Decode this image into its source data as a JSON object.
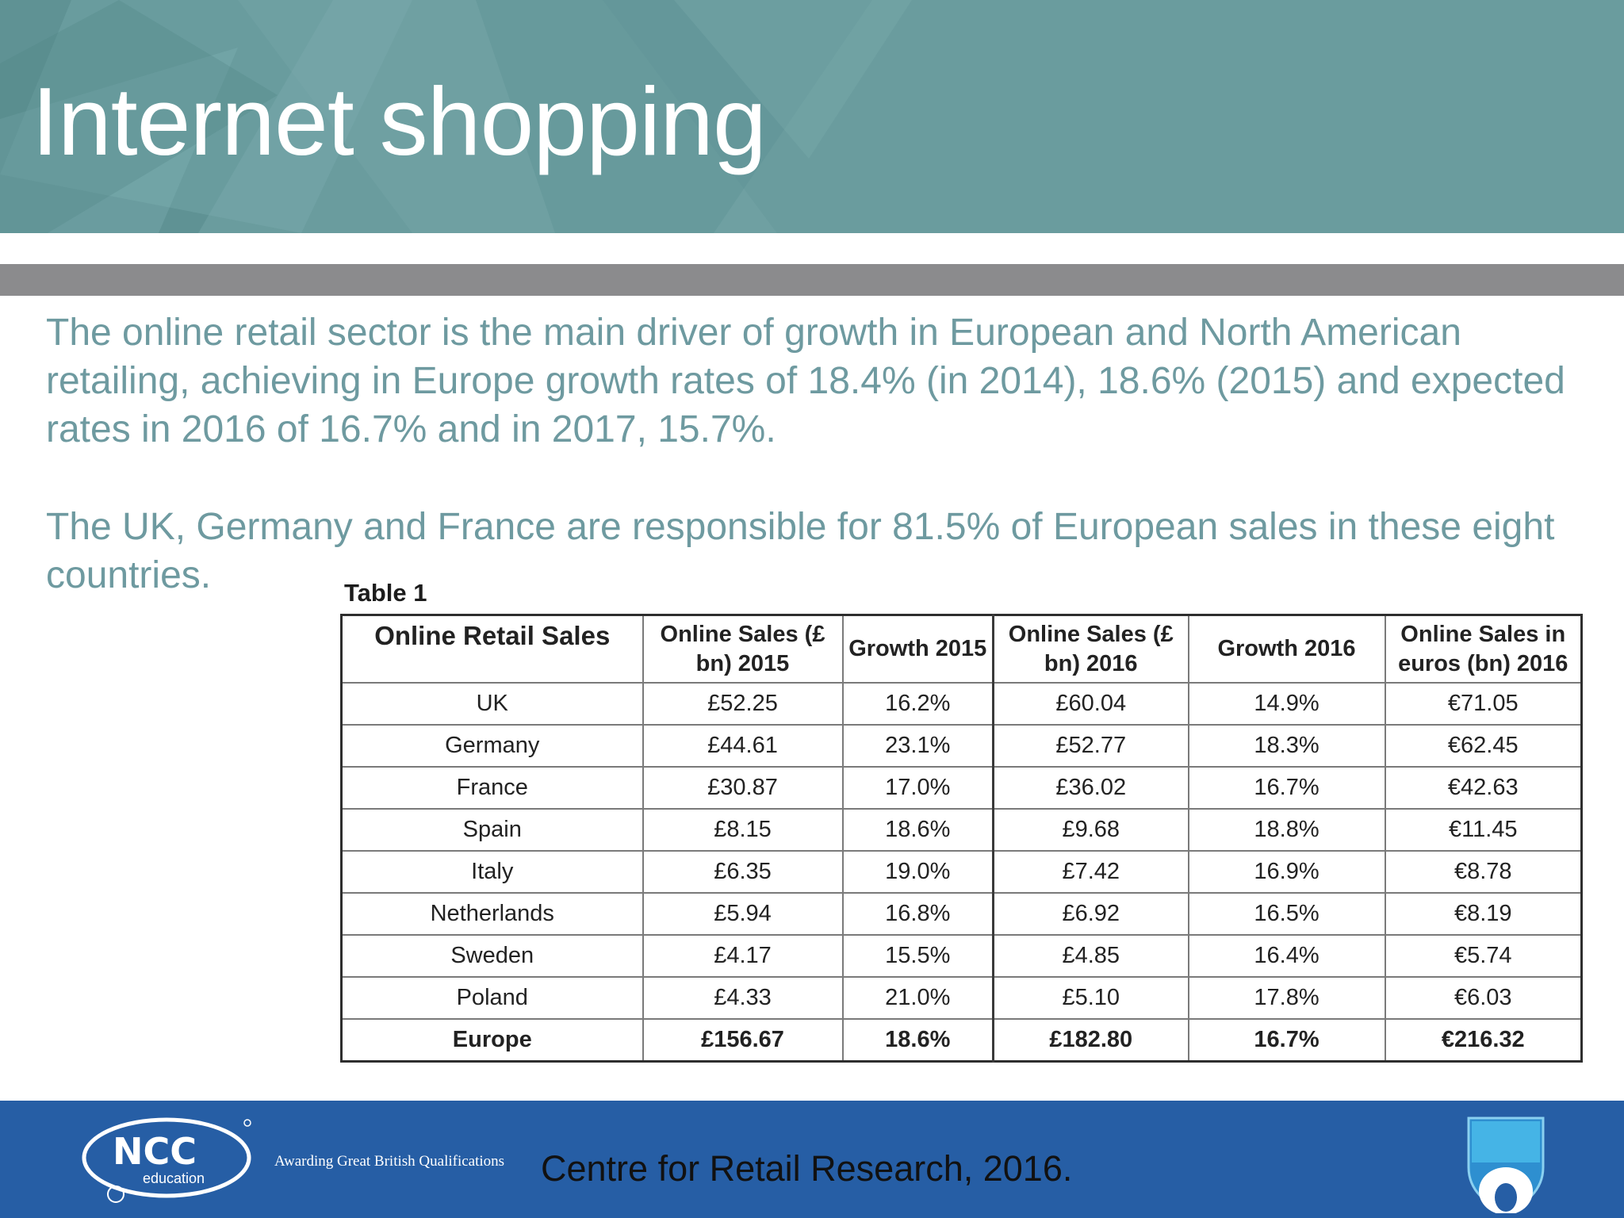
{
  "slide": {
    "title": "Internet shopping",
    "paragraphs": [
      "The online retail sector is the main driver of growth in European and North American retailing, achieving in Europe growth rates of 18.4% (in 2014), 18.6% (2015) and expected rates in 2016 of 16.7% and in 2017, 15.7%.",
      "The UK, Germany and France are responsible for 81.5% of European sales in these eight countries."
    ]
  },
  "table": {
    "caption": "Table 1",
    "headers": [
      "Online Retail Sales",
      "Online Sales (£ bn) 2015",
      "Growth 2015",
      "Online Sales (£ bn) 2016",
      "Growth 2016",
      "Online Sales in euros (bn) 2016"
    ],
    "rows": [
      [
        "UK",
        "£52.25",
        "16.2%",
        "£60.04",
        "14.9%",
        "€71.05"
      ],
      [
        "Germany",
        "£44.61",
        "23.1%",
        "£52.77",
        "18.3%",
        "€62.45"
      ],
      [
        "France",
        "£30.87",
        "17.0%",
        "£36.02",
        "16.7%",
        "€42.63"
      ],
      [
        "Spain",
        "£8.15",
        "18.6%",
        "£9.68",
        "18.8%",
        "€11.45"
      ],
      [
        "Italy",
        "£6.35",
        "19.0%",
        "£7.42",
        "16.9%",
        "€8.78"
      ],
      [
        "Netherlands",
        "£5.94",
        "16.8%",
        "£6.92",
        "16.5%",
        "€8.19"
      ],
      [
        "Sweden",
        "£4.17",
        "15.5%",
        "£4.85",
        "16.4%",
        "€5.74"
      ],
      [
        "Poland",
        "£4.33",
        "21.0%",
        "£5.10",
        "17.8%",
        "€6.03"
      ],
      [
        "Europe",
        "£156.67",
        "18.6%",
        "£182.80",
        "16.7%",
        "€216.32"
      ]
    ]
  },
  "footer": {
    "logo_text": "NCC",
    "logo_subtext": "education",
    "tagline": "Awarding Great British Qualifications",
    "source": "Centre for Retail Research, 2016.",
    "colors": {
      "footer_bg": "#265ea5",
      "header_bg": "#6a9c9e",
      "body_text": "#6e9aa0"
    }
  }
}
